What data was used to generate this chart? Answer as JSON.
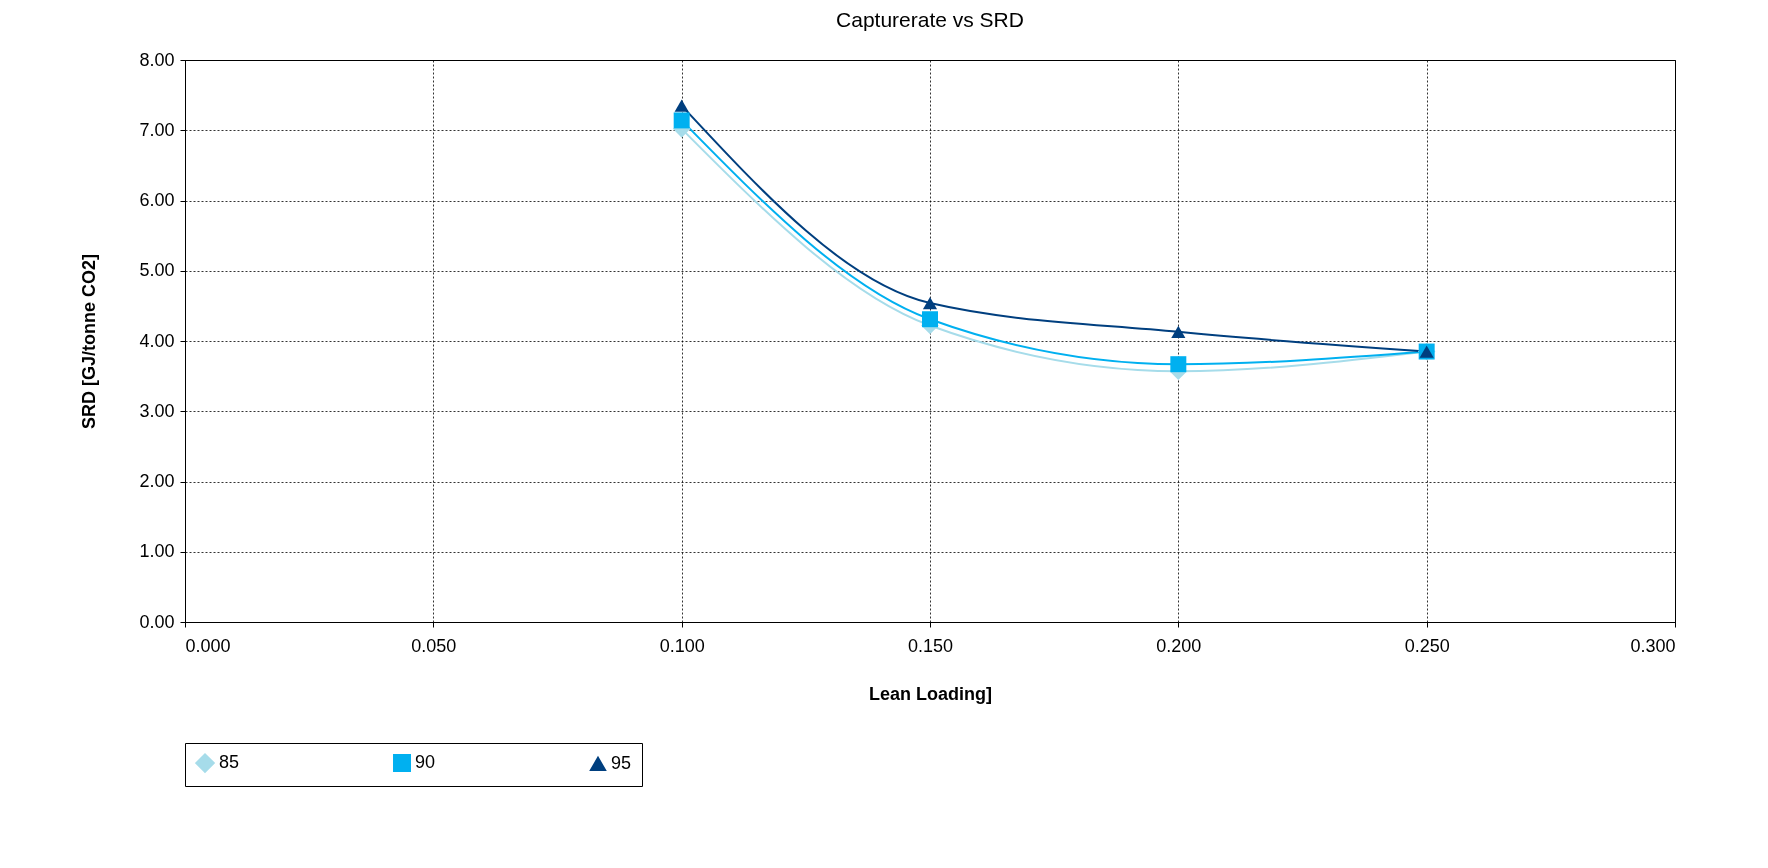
{
  "chart_data": {
    "type": "line",
    "title": "Capturerate vs SRD",
    "xlabel": "Lean Loading]",
    "ylabel": "SRD [GJ/tonne CO2]",
    "x": [
      0.1,
      0.15,
      0.2,
      0.25
    ],
    "series": [
      {
        "name": "85",
        "color": "#a6dcea",
        "marker": "diamond",
        "values": [
          7.02,
          4.22,
          3.57,
          3.85
        ]
      },
      {
        "name": "90",
        "color": "#00b0f0",
        "marker": "square",
        "values": [
          7.14,
          4.31,
          3.67,
          3.85
        ]
      },
      {
        "name": "95",
        "color": "#003f7f",
        "marker": "triangle",
        "values": [
          7.35,
          4.54,
          4.13,
          3.85
        ]
      }
    ],
    "xlim": [
      0,
      0.3
    ],
    "xticks": [
      {
        "value": 0,
        "label": "0.000"
      },
      {
        "value": 0.05,
        "label": "0.050"
      },
      {
        "value": 0.1,
        "label": "0.100"
      },
      {
        "value": 0.15,
        "label": "0.150"
      },
      {
        "value": 0.2,
        "label": "0.200"
      },
      {
        "value": 0.25,
        "label": "0.250"
      },
      {
        "value": 0.3,
        "label": "0.300"
      }
    ],
    "ylim": [
      0,
      8
    ],
    "yticks": [
      {
        "value": 0,
        "label": "0.00"
      },
      {
        "value": 1,
        "label": "1.00"
      },
      {
        "value": 2,
        "label": "2.00"
      },
      {
        "value": 3,
        "label": "3.00"
      },
      {
        "value": 4,
        "label": "4.00"
      },
      {
        "value": 5,
        "label": "5.00"
      },
      {
        "value": 6,
        "label": "6.00"
      },
      {
        "value": 7,
        "label": "7.00"
      },
      {
        "value": 8,
        "label": "8.00"
      }
    ],
    "grid": true,
    "legend": "bottom",
    "line_style": "solid"
  }
}
